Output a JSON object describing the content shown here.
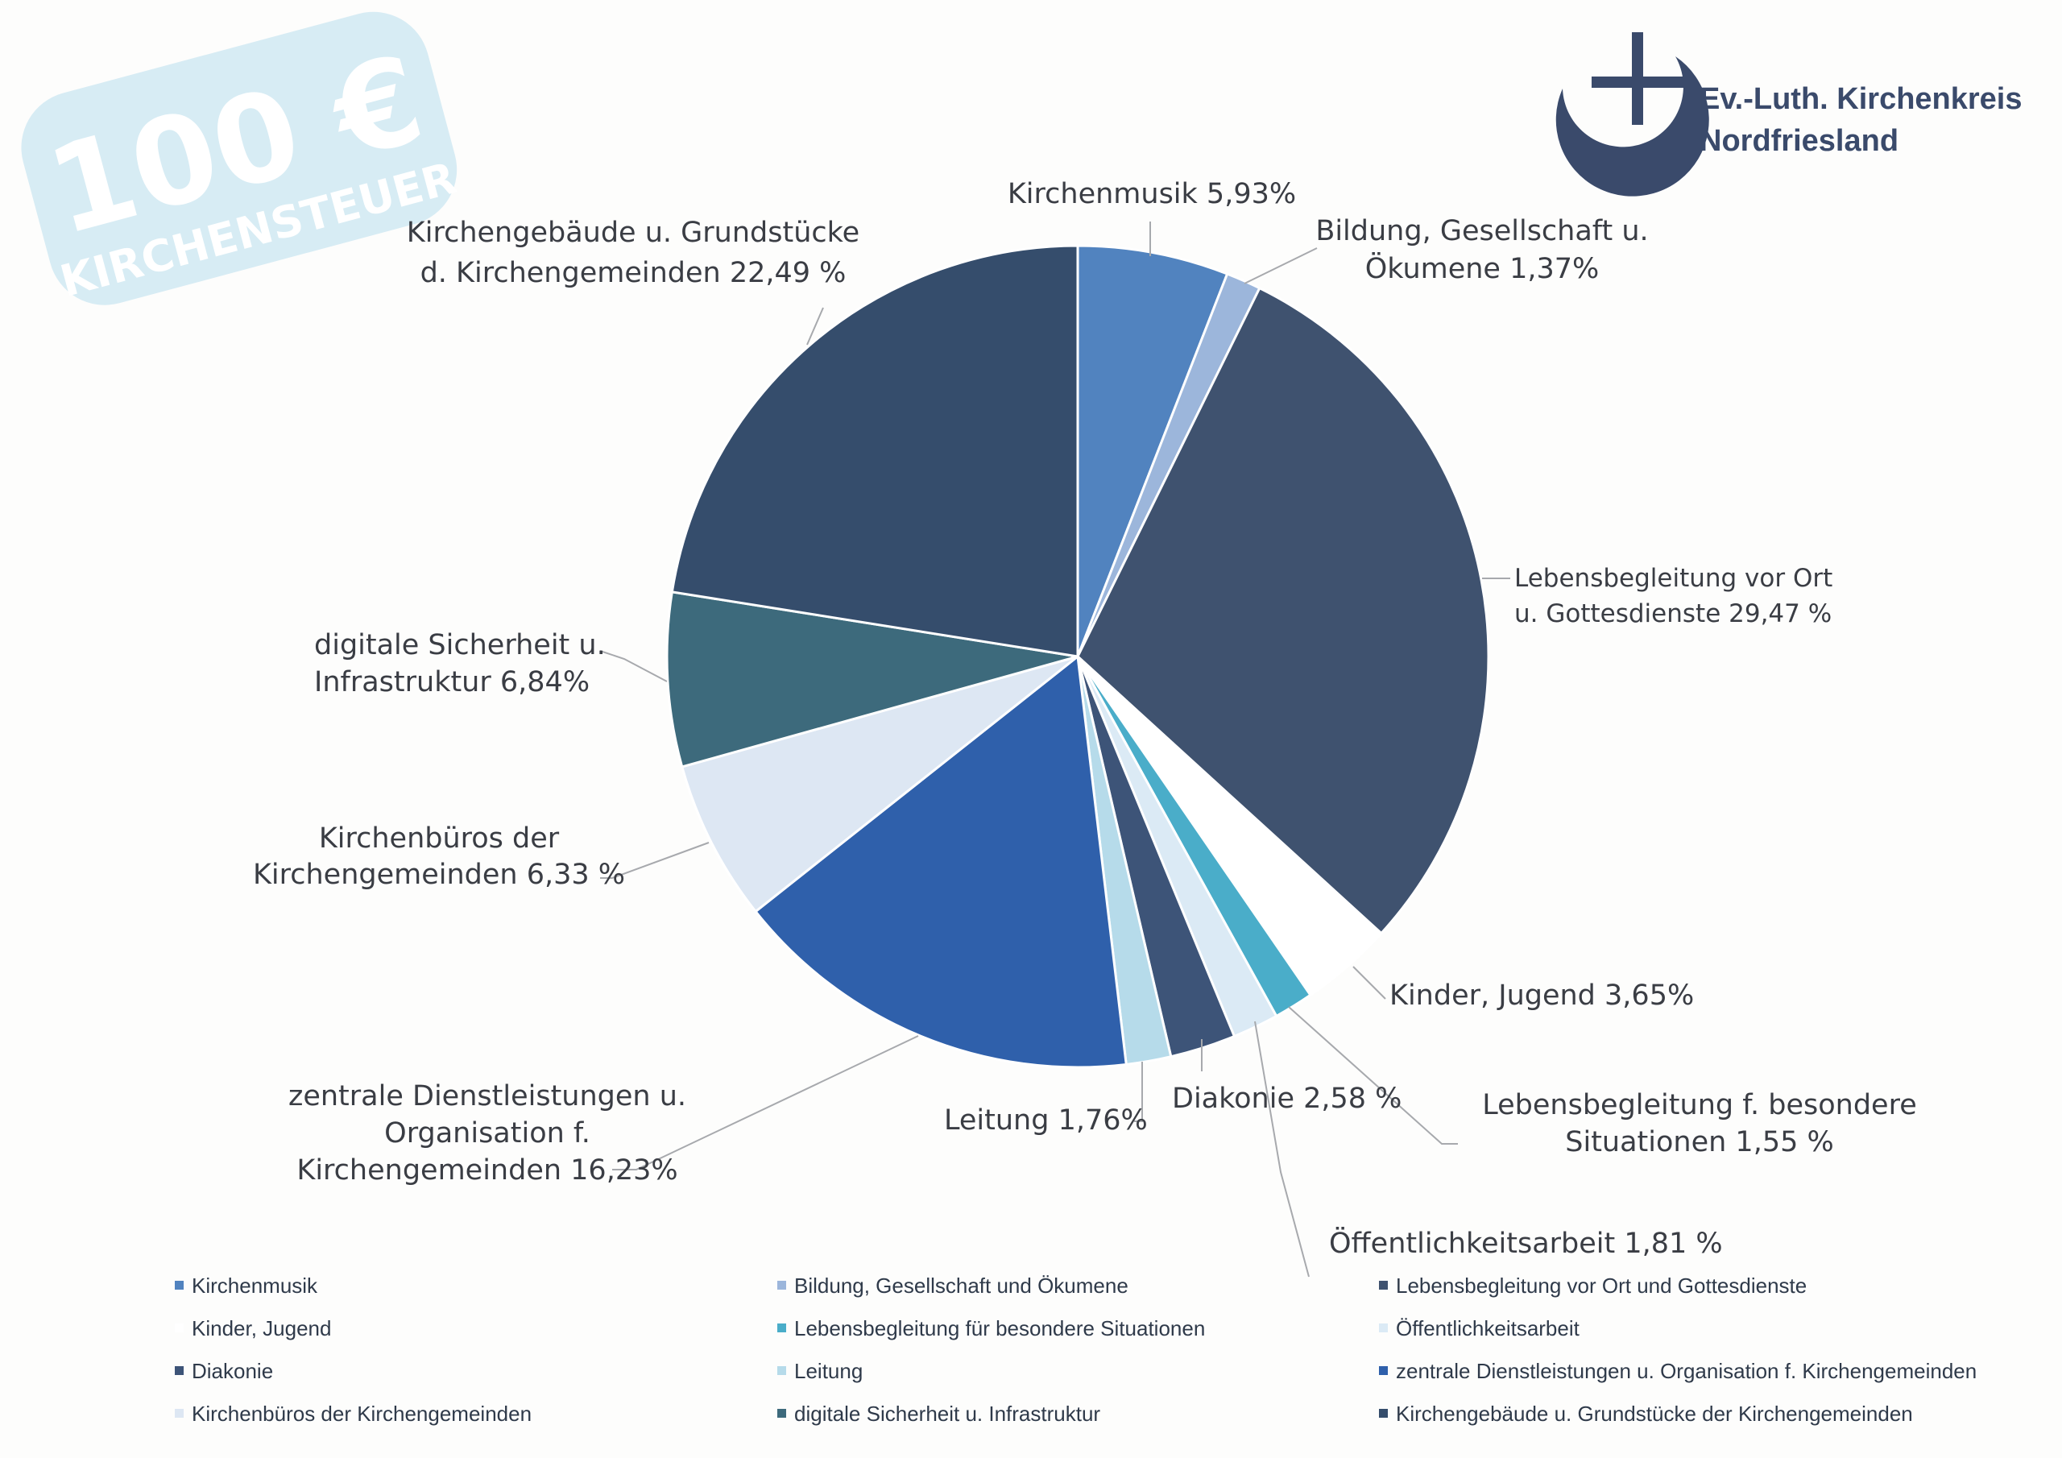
{
  "stamp": {
    "amount": "100 €",
    "word": "KIRCHENSTEUER"
  },
  "logo": {
    "line1": "Ev.-Luth. Kirchenkreis",
    "line2": "Nordfriesland"
  },
  "chart_data": {
    "type": "pie",
    "unit": "%",
    "slices": [
      {
        "name": "Kirchenmusik",
        "value": 5.93,
        "color": "#5183bf",
        "label_lines": [
          "Kirchenmusik 5,93%"
        ]
      },
      {
        "name": "Bildung, Gesellschaft und Ökumene",
        "value": 1.37,
        "color": "#9cb6db",
        "label_lines": [
          "Bildung, Gesellschaft u.",
          "Ökumene 1,37%"
        ]
      },
      {
        "name": "Lebensbegleitung vor Ort und Gottesdienste",
        "value": 29.47,
        "color": "#3f526f",
        "label_lines": [
          "Lebensbegleitung vor Ort",
          "u. Gottesdienste 29,47 %"
        ]
      },
      {
        "name": "Kinder, Jugend",
        "value": 3.65,
        "color": "#ffffff",
        "label_lines": [
          "Kinder, Jugend 3,65%"
        ]
      },
      {
        "name": "Lebensbegleitung für besondere Situationen",
        "value": 1.55,
        "color": "#4aadc9",
        "label_lines": [
          "Lebensbegleitung f. besondere",
          "Situationen 1,55 %"
        ]
      },
      {
        "name": "Öffentlichkeitsarbeit",
        "value": 1.81,
        "color": "#dbeaf5",
        "label_lines": [
          "Öffentlichkeitsarbeit 1,81 %"
        ]
      },
      {
        "name": "Diakonie",
        "value": 2.58,
        "color": "#3d5478",
        "label_lines": [
          "Diakonie 2,58 %"
        ]
      },
      {
        "name": "Leitung",
        "value": 1.76,
        "color": "#b6dbea",
        "label_lines": [
          "Leitung 1,76%"
        ]
      },
      {
        "name": "zentrale Dienstleistungen u. Organisation f. Kirchengemeinden",
        "value": 16.23,
        "color": "#2f60ab",
        "label_lines": [
          "zentrale Dienstleistungen u.",
          "Organisation f.",
          "Kirchengemeinden 16,23%"
        ]
      },
      {
        "name": "Kirchenbüros der Kirchengemeinden",
        "value": 6.33,
        "color": "#dde7f3",
        "label_lines": [
          "Kirchenbüros der",
          "Kirchengemeinden 6,33 %"
        ]
      },
      {
        "name": "digitale Sicherheit u. Infrastruktur",
        "value": 6.84,
        "color": "#3d6a7c",
        "label_lines": [
          "digitale Sicherheit u.",
          "Infrastruktur 6,84%"
        ]
      },
      {
        "name": "Kirchengebäude u. Grundstücke der Kirchengemeinden",
        "value": 22.49,
        "color": "#354d6c",
        "label_lines": [
          "Kirchengebäude u. Grundstücke",
          "d. Kirchengemeinden 22,49 %"
        ]
      }
    ],
    "legend": [
      {
        "label": "Kirchenmusik",
        "color": "#5183bf"
      },
      {
        "label": "Bildung, Gesellschaft und Ökumene",
        "color": "#9cb6db"
      },
      {
        "label": "Lebensbegleitung vor Ort und Gottesdienste",
        "color": "#3f526f"
      },
      {
        "label": "Kinder, Jugend",
        "color": "#ffffff"
      },
      {
        "label": "Lebensbegleitung für besondere Situationen",
        "color": "#4aadc9"
      },
      {
        "label": "Öffentlichkeitsarbeit",
        "color": "#dbeaf5"
      },
      {
        "label": "Diakonie",
        "color": "#3d5478"
      },
      {
        "label": "Leitung",
        "color": "#b6dbea"
      },
      {
        "label": "zentrale Dienstleistungen u. Organisation f. Kirchengemeinden",
        "color": "#2f60ab"
      },
      {
        "label": "Kirchenbüros der Kirchengemeinden",
        "color": "#dde7f3"
      },
      {
        "label": "digitale Sicherheit u. Infrastruktur",
        "color": "#3d6a7c"
      },
      {
        "label": "Kirchengebäude u. Grundstücke der Kirchengemeinden",
        "color": "#354d6c"
      }
    ],
    "legend_placement": "bottom"
  }
}
